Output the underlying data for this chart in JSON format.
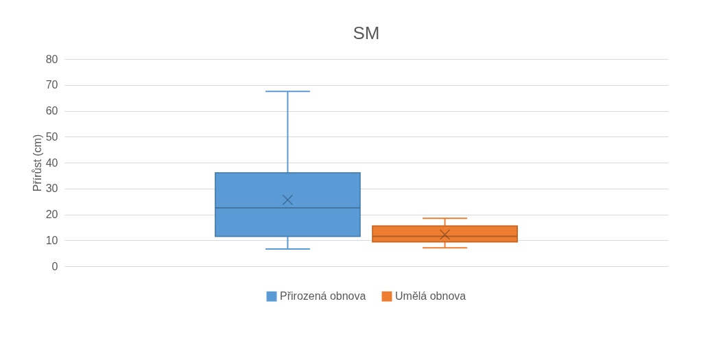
{
  "chart_data": {
    "type": "box",
    "title": "SM",
    "ylabel": "Přírůst (cm)",
    "categories": [
      null
    ],
    "series": [
      {
        "name": "Přirozená obnova",
        "color": "#5b9bd5",
        "boxes": [
          {
            "low": 6.6,
            "q1": 11.5,
            "median": 22.5,
            "q3": 36,
            "high": 67.5,
            "mean": 25.6
          }
        ]
      },
      {
        "name": "Umělá obnova",
        "color": "#ed7d31",
        "boxes": [
          {
            "low": 7.1,
            "q1": 9.4,
            "median": 11.5,
            "q3": 15.5,
            "high": 18.5,
            "mean": 12.2
          }
        ]
      }
    ],
    "ylim": [
      0,
      80
    ],
    "yticks": [
      0,
      10,
      20,
      30,
      40,
      50,
      60,
      70,
      80
    ],
    "grid": "y",
    "legend": "bottom",
    "tick_labels": "y"
  }
}
